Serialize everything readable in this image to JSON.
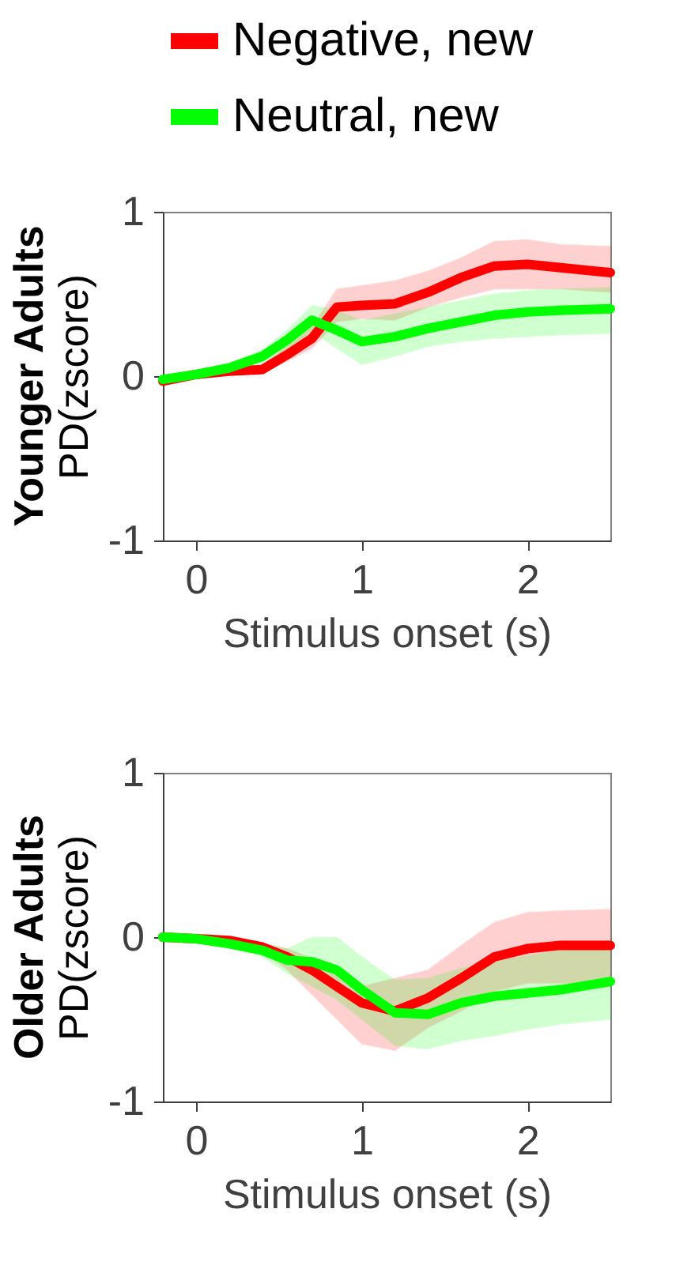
{
  "chart_data": [
    {
      "type": "line",
      "title": "Younger Adults",
      "ylabel": "PD(zscore)",
      "xlabel": "Stimulus onset (s)",
      "legend": "top",
      "x": [
        -0.2,
        0,
        0.2,
        0.4,
        0.55,
        0.7,
        0.85,
        1.0,
        1.2,
        1.4,
        1.6,
        1.8,
        2.0,
        2.2,
        2.5
      ],
      "series": [
        {
          "name": "Negative, new",
          "color": "#ff0000",
          "values": [
            -0.03,
            0.01,
            0.03,
            0.04,
            0.13,
            0.23,
            0.42,
            0.43,
            0.44,
            0.51,
            0.6,
            0.67,
            0.68,
            0.66,
            0.63
          ],
          "upper": [
            -0.01,
            0.03,
            0.05,
            0.07,
            0.18,
            0.3,
            0.53,
            0.55,
            0.58,
            0.64,
            0.72,
            0.82,
            0.83,
            0.8,
            0.79
          ],
          "lower": [
            -0.05,
            -0.01,
            0.01,
            0.02,
            0.09,
            0.17,
            0.33,
            0.35,
            0.34,
            0.42,
            0.48,
            0.53,
            0.53,
            0.53,
            0.51
          ]
        },
        {
          "name": "Neutral, new",
          "color": "#00ff00",
          "values": [
            -0.02,
            0.01,
            0.05,
            0.12,
            0.22,
            0.34,
            0.28,
            0.21,
            0.24,
            0.29,
            0.33,
            0.37,
            0.39,
            0.4,
            0.41
          ],
          "upper": [
            0,
            0.03,
            0.08,
            0.16,
            0.28,
            0.43,
            0.4,
            0.34,
            0.38,
            0.42,
            0.46,
            0.5,
            0.52,
            0.53,
            0.54
          ],
          "lower": [
            -0.04,
            -0.01,
            0.02,
            0.08,
            0.16,
            0.27,
            0.17,
            0.07,
            0.12,
            0.18,
            0.21,
            0.23,
            0.24,
            0.25,
            0.26
          ]
        }
      ],
      "xlim": [
        -0.2,
        2.5
      ],
      "xticks": [
        0,
        1,
        2
      ],
      "ylim": [
        -1,
        1
      ],
      "yticks": [
        -1,
        0,
        1
      ],
      "grid": false
    },
    {
      "type": "line",
      "title": "Older Adults",
      "ylabel": "PD(zscore)",
      "xlabel": "Stimulus onset (s)",
      "x": [
        -0.2,
        0,
        0.2,
        0.4,
        0.55,
        0.7,
        0.85,
        1.0,
        1.2,
        1.4,
        1.6,
        1.8,
        2.0,
        2.2,
        2.5
      ],
      "series": [
        {
          "color": "#ff0000",
          "values": [
            0.0,
            -0.01,
            -0.02,
            -0.06,
            -0.12,
            -0.2,
            -0.3,
            -0.4,
            -0.45,
            -0.37,
            -0.25,
            -0.12,
            -0.07,
            -0.05,
            -0.05
          ],
          "upper": [
            0.02,
            0.01,
            0,
            -0.04,
            -0.07,
            -0.13,
            -0.22,
            -0.3,
            -0.25,
            -0.2,
            -0.05,
            0.09,
            0.15,
            0.16,
            0.17
          ],
          "lower": [
            -0.02,
            -0.03,
            -0.04,
            -0.08,
            -0.2,
            -0.35,
            -0.5,
            -0.65,
            -0.69,
            -0.55,
            -0.45,
            -0.33,
            -0.28,
            -0.28,
            -0.3
          ]
        },
        {
          "color": "#00ff00",
          "values": [
            0.0,
            -0.01,
            -0.04,
            -0.08,
            -0.14,
            -0.15,
            -0.2,
            -0.32,
            -0.46,
            -0.47,
            -0.4,
            -0.36,
            -0.34,
            -0.32,
            -0.27
          ],
          "upper": [
            0.02,
            0.01,
            -0.02,
            -0.04,
            -0.07,
            0.0,
            0.0,
            -0.12,
            -0.26,
            -0.25,
            -0.19,
            -0.15,
            -0.11,
            -0.08,
            -0.05
          ],
          "lower": [
            -0.02,
            -0.03,
            -0.06,
            -0.12,
            -0.22,
            -0.3,
            -0.38,
            -0.5,
            -0.66,
            -0.68,
            -0.63,
            -0.6,
            -0.56,
            -0.53,
            -0.5
          ]
        }
      ],
      "xlim": [
        -0.2,
        2.5
      ],
      "xticks": [
        0,
        1,
        2
      ],
      "ylim": [
        -1,
        1
      ],
      "yticks": [
        -1,
        0,
        1
      ],
      "grid": false
    }
  ]
}
